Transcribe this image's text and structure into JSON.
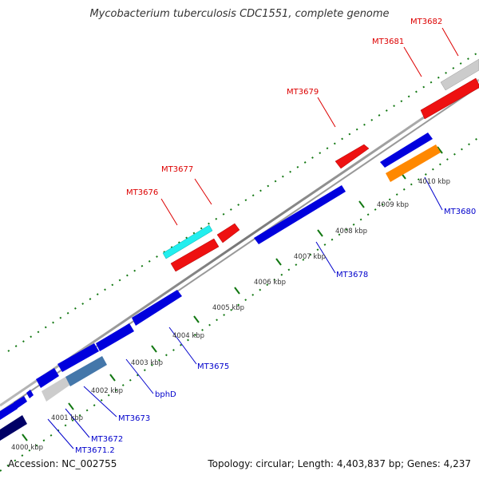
{
  "title": "Mycobacterium tuberculosis CDC1551, complete genome",
  "footer": {
    "accession": "Accession: NC_002755",
    "stats": "Topology: circular; Length: 4,403,837 bp; Genes: 4,237"
  },
  "colors": {
    "forward_label": "#dd0000",
    "reverse_label": "#0000cc",
    "backbone": "#888888",
    "tick": "#117711"
  },
  "tick_labels": [
    "4000 kbp",
    "4001 kbp",
    "4002 kbp",
    "4003 kbp",
    "4004 kbp",
    "4005 kbp",
    "4006 kbp",
    "4007 kbp",
    "4008 kbp",
    "4009 kbp",
    "4010 kbp"
  ],
  "forward_labels": [
    "MT3676",
    "MT3677",
    "MT3679",
    "MT3681",
    "MT3682"
  ],
  "reverse_labels": [
    "MT3671.2",
    "MT3672",
    "MT3673",
    "bphD",
    "MT3675",
    "MT3678",
    "MT3680"
  ]
}
